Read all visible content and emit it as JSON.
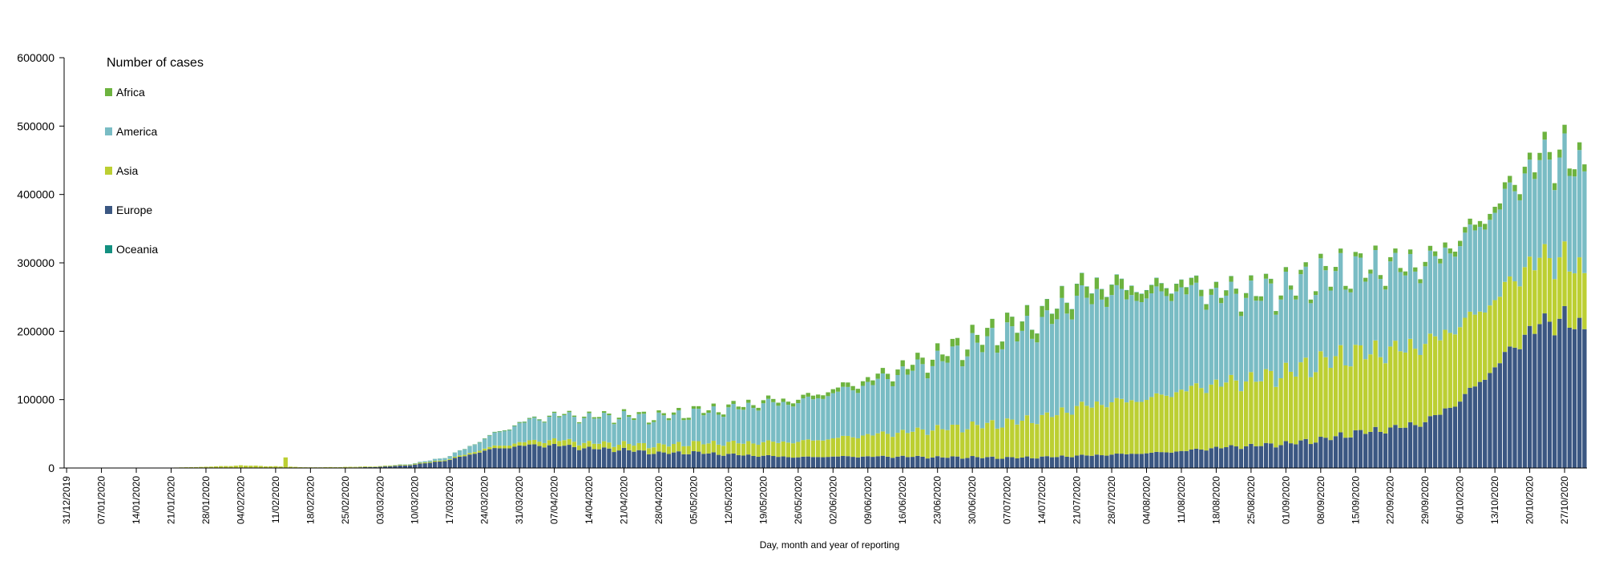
{
  "chart_data": {
    "type": "bar",
    "stacked": true,
    "legend_title": "Number of cases",
    "legend_position": "top-left",
    "xlabel": "Day, month and year of reporting",
    "ylabel": "",
    "ylim": [
      0,
      600000
    ],
    "yticks": [
      "0",
      "100000",
      "200000",
      "300000",
      "400000",
      "500000",
      "600000"
    ],
    "x_start": "31/12/2019",
    "x_end": "31/10/2020",
    "xtick_labels": [
      "31/12/2019",
      "07/01/2020",
      "14/01/2020",
      "21/01/2020",
      "28/01/2020",
      "04/02/2020",
      "11/02/2020",
      "18/02/2020",
      "25/02/2020",
      "03/03/2020",
      "10/03/2020",
      "17/03/2020",
      "24/03/2020",
      "31/03/2020",
      "07/04/2020",
      "14/04/2020",
      "21/04/2020",
      "28/04/2020",
      "05/05/2020",
      "12/05/2020",
      "19/05/2020",
      "26/05/2020",
      "02/06/2020",
      "09/06/2020",
      "16/06/2020",
      "23/06/2020",
      "30/06/2020",
      "07/07/2020",
      "14/07/2020",
      "21/07/2020",
      "28/07/2020",
      "04/08/2020",
      "11/08/2020",
      "18/08/2020",
      "25/08/2020",
      "01/09/2020",
      "08/09/2020",
      "15/09/2020",
      "22/09/2020",
      "29/09/2020",
      "06/10/2020",
      "13/10/2020",
      "20/10/2020",
      "27/10/2020"
    ],
    "series": [
      {
        "name": "Europe",
        "color": "#3b5782"
      },
      {
        "name": "Asia",
        "color": "#bccf32"
      },
      {
        "name": "America",
        "color": "#79bcc4"
      },
      {
        "name": "Africa",
        "color": "#6db33f"
      },
      {
        "name": "Oceania",
        "color": "#139080"
      }
    ],
    "legend_order": [
      "Africa",
      "America",
      "Asia",
      "Europe",
      "Oceania"
    ],
    "weekly_anchors": [
      {
        "date": "31/12/2019",
        "Europe": 0,
        "Asia": 30,
        "America": 0,
        "Africa": 0,
        "Oceania": 0
      },
      {
        "date": "07/01/2020",
        "Europe": 0,
        "Asia": 20,
        "America": 0,
        "Africa": 0,
        "Oceania": 0
      },
      {
        "date": "14/01/2020",
        "Europe": 0,
        "Asia": 40,
        "America": 0,
        "Africa": 0,
        "Oceania": 0
      },
      {
        "date": "21/01/2020",
        "Europe": 0,
        "Asia": 500,
        "America": 1,
        "Africa": 0,
        "Oceania": 0
      },
      {
        "date": "28/01/2020",
        "Europe": 5,
        "Asia": 1800,
        "America": 2,
        "Africa": 0,
        "Oceania": 2
      },
      {
        "date": "04/02/2020",
        "Europe": 10,
        "Asia": 3800,
        "America": 3,
        "Africa": 0,
        "Oceania": 2
      },
      {
        "date": "11/02/2020",
        "Europe": 5,
        "Asia": 2500,
        "America": 1,
        "Africa": 0,
        "Oceania": 1
      },
      {
        "date": "18/02/2020",
        "Europe": 20,
        "Asia": 900,
        "America": 2,
        "Africa": 1,
        "Oceania": 1
      },
      {
        "date": "25/02/2020",
        "Europe": 500,
        "Asia": 1000,
        "America": 10,
        "Africa": 3,
        "Oceania": 3
      },
      {
        "date": "03/03/2020",
        "Europe": 1600,
        "Asia": 1000,
        "America": 150,
        "Africa": 10,
        "Oceania": 10
      },
      {
        "date": "10/03/2020",
        "Europe": 5000,
        "Asia": 1200,
        "America": 700,
        "Africa": 40,
        "Oceania": 30
      },
      {
        "date": "17/03/2020",
        "Europe": 12000,
        "Asia": 1400,
        "America": 4000,
        "Africa": 200,
        "Oceania": 100
      },
      {
        "date": "24/03/2020",
        "Europe": 26000,
        "Asia": 3000,
        "America": 14000,
        "Africa": 600,
        "Oceania": 400
      },
      {
        "date": "31/03/2020",
        "Europe": 33000,
        "Asia": 5000,
        "America": 28000,
        "Africa": 1000,
        "Oceania": 400
      },
      {
        "date": "07/04/2020",
        "Europe": 34000,
        "Asia": 8000,
        "America": 36000,
        "Africa": 1500,
        "Oceania": 150
      },
      {
        "date": "14/04/2020",
        "Europe": 29000,
        "Asia": 8000,
        "America": 38000,
        "Africa": 2000,
        "Oceania": 60
      },
      {
        "date": "21/04/2020",
        "Europe": 27000,
        "Asia": 9000,
        "America": 40000,
        "Africa": 2500,
        "Oceania": 30
      },
      {
        "date": "28/04/2020",
        "Europe": 22000,
        "Asia": 11000,
        "America": 41000,
        "Africa": 3000,
        "Oceania": 20
      },
      {
        "date": "05/05/2020",
        "Europe": 23000,
        "Asia": 14000,
        "America": 44000,
        "Africa": 3500,
        "Oceania": 15
      },
      {
        "date": "12/05/2020",
        "Europe": 20000,
        "Asia": 17000,
        "America": 49000,
        "Africa": 4000,
        "Oceania": 15
      },
      {
        "date": "19/05/2020",
        "Europe": 18000,
        "Asia": 20000,
        "America": 57000,
        "Africa": 4500,
        "Oceania": 15
      },
      {
        "date": "26/05/2020",
        "Europe": 16000,
        "Asia": 23000,
        "America": 58000,
        "Africa": 5000,
        "Oceania": 15
      },
      {
        "date": "02/06/2020",
        "Europe": 17000,
        "Asia": 27000,
        "America": 67000,
        "Africa": 6000,
        "Oceania": 15
      },
      {
        "date": "09/06/2020",
        "Europe": 17000,
        "Asia": 32000,
        "America": 75000,
        "Africa": 7000,
        "Oceania": 20
      },
      {
        "date": "16/06/2020",
        "Europe": 17000,
        "Asia": 36000,
        "America": 88000,
        "Africa": 8500,
        "Oceania": 20
      },
      {
        "date": "23/06/2020",
        "Europe": 16000,
        "Asia": 42000,
        "America": 100000,
        "Africa": 10000,
        "Oceania": 30
      },
      {
        "date": "30/06/2020",
        "Europe": 16000,
        "Asia": 46000,
        "America": 118000,
        "Africa": 11000,
        "Oceania": 50
      },
      {
        "date": "07/07/2020",
        "Europe": 15000,
        "Asia": 52000,
        "America": 130000,
        "Africa": 13000,
        "Oceania": 150
      },
      {
        "date": "14/07/2020",
        "Europe": 16000,
        "Asia": 58000,
        "America": 137000,
        "Africa": 15000,
        "Oceania": 300
      },
      {
        "date": "21/07/2020",
        "Europe": 18000,
        "Asia": 72000,
        "America": 160000,
        "Africa": 17000,
        "Oceania": 400
      },
      {
        "date": "28/07/2020",
        "Europe": 20000,
        "Asia": 78000,
        "America": 160000,
        "Africa": 15000,
        "Oceania": 500
      },
      {
        "date": "04/08/2020",
        "Europe": 22000,
        "Asia": 80000,
        "America": 152000,
        "Africa": 12000,
        "Oceania": 500
      },
      {
        "date": "11/08/2020",
        "Europe": 25000,
        "Asia": 90000,
        "America": 150000,
        "Africa": 11000,
        "Oceania": 400
      },
      {
        "date": "18/08/2020",
        "Europe": 30000,
        "Asia": 95000,
        "America": 130000,
        "Africa": 8000,
        "Oceania": 300
      },
      {
        "date": "25/08/2020",
        "Europe": 33000,
        "Asia": 98000,
        "America": 125000,
        "Africa": 7000,
        "Oceania": 200
      },
      {
        "date": "01/09/2020",
        "Europe": 36000,
        "Asia": 105000,
        "America": 122000,
        "Africa": 6000,
        "Oceania": 150
      },
      {
        "date": "08/09/2020",
        "Europe": 42000,
        "Asia": 115000,
        "America": 125000,
        "Africa": 6000,
        "Oceania": 100
      },
      {
        "date": "15/09/2020",
        "Europe": 52000,
        "Asia": 118000,
        "America": 122000,
        "Africa": 6000,
        "Oceania": 60
      },
      {
        "date": "22/09/2020",
        "Europe": 58000,
        "Asia": 116000,
        "America": 122000,
        "Africa": 6000,
        "Oceania": 40
      },
      {
        "date": "29/09/2020",
        "Europe": 68000,
        "Asia": 116000,
        "America": 115000,
        "Africa": 6500,
        "Oceania": 30
      },
      {
        "date": "06/10/2020",
        "Europe": 100000,
        "Asia": 112000,
        "America": 122000,
        "Africa": 8000,
        "Oceania": 25
      },
      {
        "date": "13/10/2020",
        "Europe": 150000,
        "Asia": 100000,
        "America": 130000,
        "Africa": 9000,
        "Oceania": 25
      },
      {
        "date": "20/10/2020",
        "Europe": 205000,
        "Asia": 100000,
        "America": 140000,
        "Africa": 10000,
        "Oceania": 25
      },
      {
        "date": "27/10/2020",
        "Europe": 225000,
        "Asia": 90000,
        "America": 150000,
        "Africa": 12000,
        "Oceania": 25
      },
      {
        "date": "31/10/2020",
        "Europe": 198000,
        "Asia": 80000,
        "America": 145000,
        "Africa": 10000,
        "Oceania": 25
      }
    ],
    "spike": {
      "date": "13/02/2020",
      "Asia": 15500
    }
  }
}
